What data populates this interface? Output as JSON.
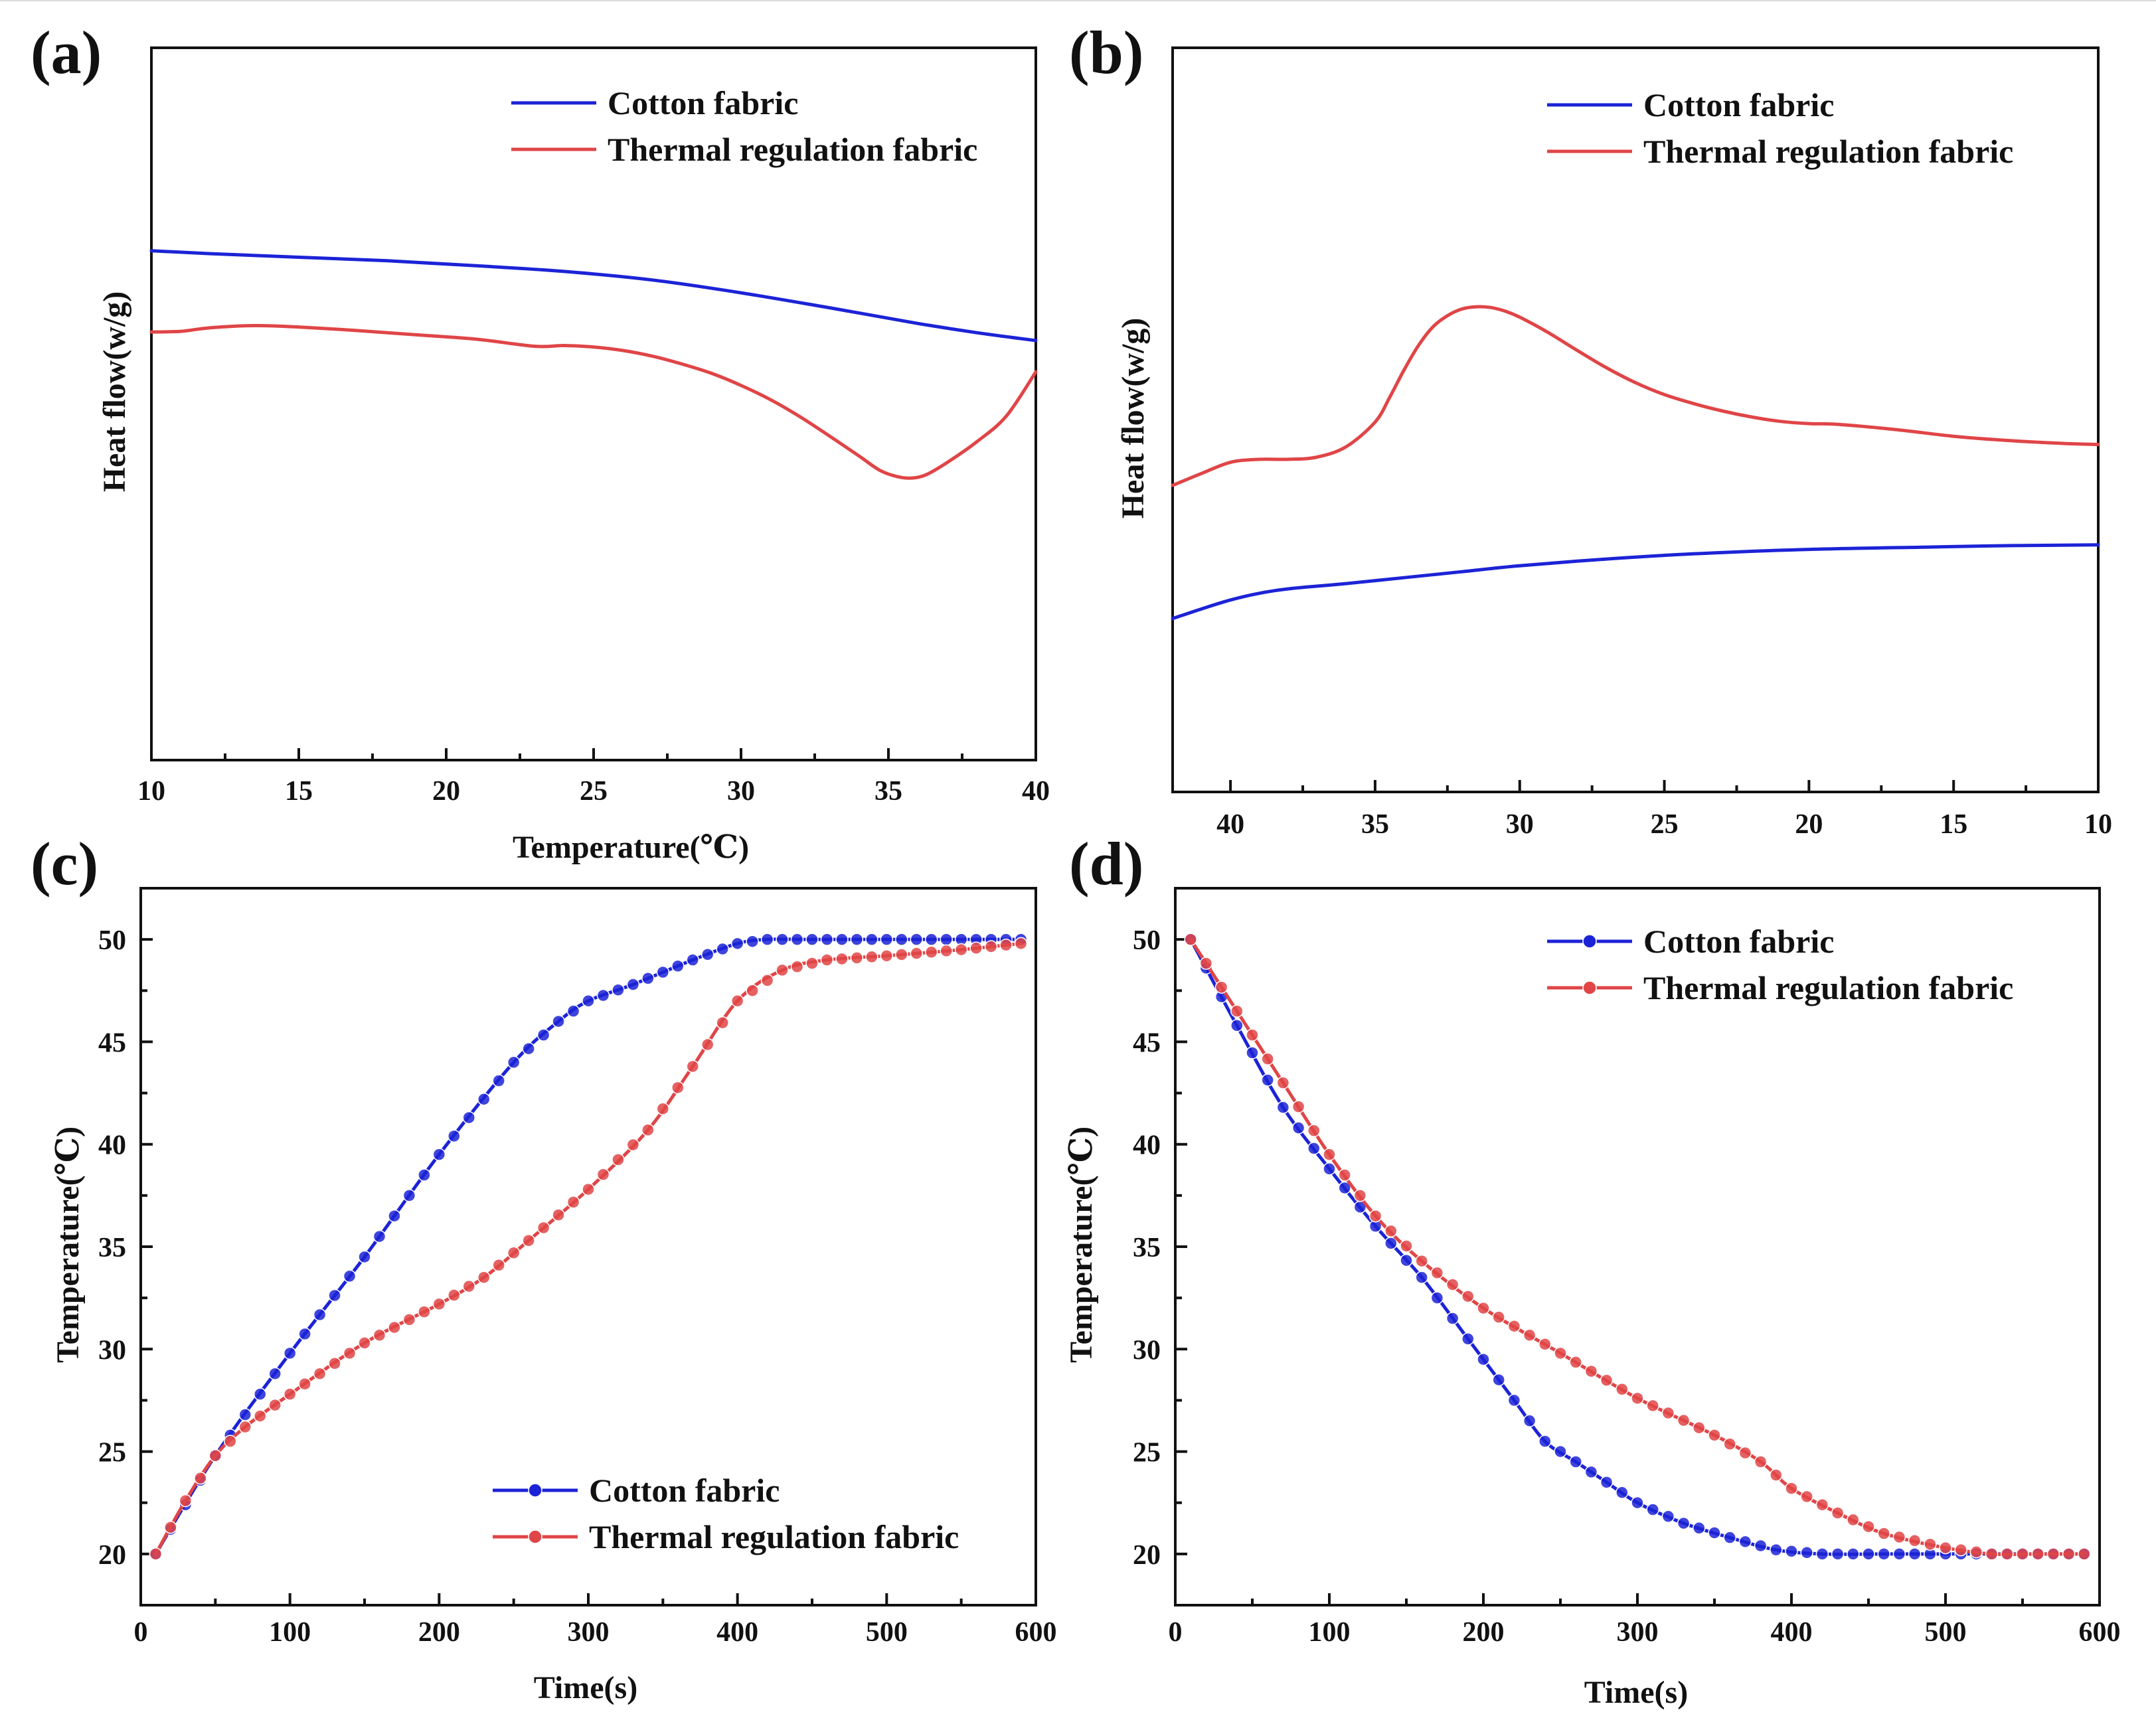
{
  "figure": {
    "colors": {
      "cotton": "#1c23d6",
      "thermal": "#e04547",
      "axis": "#111111"
    }
  },
  "chart_data": [
    {
      "id": "a",
      "panel_label": "(a)",
      "type": "line",
      "xlabel": "Temperature(℃)",
      "ylabel": "Heat flow(w/g)",
      "xlim": [
        10,
        40
      ],
      "ylim": [
        0,
        100
      ],
      "x_reversed": false,
      "yticks_shown": false,
      "xticks": [
        10,
        15,
        20,
        25,
        30,
        35,
        40
      ],
      "legend": {
        "position": "top-right",
        "entries": [
          "Cotton fabric",
          "Thermal regulation fabric"
        ]
      },
      "series": [
        {
          "name": "Cotton fabric",
          "color": "#1c23d6",
          "markers": false,
          "x": [
            10,
            12,
            15,
            18,
            21,
            24,
            27,
            30,
            33,
            36,
            38,
            40
          ],
          "y": [
            71.5,
            71.1,
            70.6,
            70.1,
            69.4,
            68.6,
            67.4,
            65.6,
            63.5,
            61.3,
            60.0,
            58.9
          ]
        },
        {
          "name": "Thermal regulation fabric",
          "color": "#e04547",
          "markers": false,
          "x": [
            10,
            11,
            12,
            13.5,
            15,
            17,
            19,
            21,
            23,
            24,
            25,
            26,
            27,
            28,
            29,
            30,
            31,
            32,
            33,
            34,
            34.7,
            35.3,
            35.8,
            36.3,
            37,
            38,
            39,
            40
          ],
          "y": [
            60.1,
            60.2,
            60.7,
            61.0,
            60.8,
            60.3,
            59.7,
            59.1,
            58.1,
            58.2,
            58.0,
            57.5,
            56.7,
            55.6,
            54.3,
            52.6,
            50.6,
            48.2,
            45.5,
            42.7,
            40.7,
            39.8,
            39.6,
            40.1,
            41.8,
            44.7,
            48.3,
            54.5
          ]
        }
      ]
    },
    {
      "id": "b",
      "panel_label": "(b)",
      "type": "line",
      "xlabel": "",
      "ylabel": "Heat flow(w/g)",
      "xlim": [
        42,
        10
      ],
      "ylim": [
        0,
        100
      ],
      "x_reversed": true,
      "yticks_shown": false,
      "xticks": [
        40,
        35,
        30,
        25,
        20,
        15,
        10
      ],
      "legend": {
        "position": "top-right",
        "entries": [
          "Cotton fabric",
          "Thermal regulation fabric"
        ]
      },
      "series": [
        {
          "name": "Cotton fabric",
          "color": "#1c23d6",
          "markers": false,
          "x": [
            42,
            41,
            40,
            39,
            38,
            36,
            34,
            32,
            30,
            27,
            24,
            20,
            16,
            13,
            10
          ],
          "y": [
            23.3,
            24.6,
            25.8,
            26.7,
            27.3,
            28.0,
            28.8,
            29.6,
            30.4,
            31.3,
            32.0,
            32.6,
            32.9,
            33.1,
            33.2
          ]
        },
        {
          "name": "Thermal regulation fabric",
          "color": "#e04547",
          "markers": false,
          "x": [
            42,
            41,
            40,
            39,
            38,
            37,
            36,
            35,
            34.5,
            34,
            33.5,
            33,
            32.5,
            32,
            31.5,
            31,
            30.5,
            30,
            29,
            28,
            27,
            26,
            25,
            24,
            23,
            22,
            21,
            20,
            19,
            17,
            15,
            13,
            11,
            10
          ],
          "y": [
            41.2,
            42.8,
            44.3,
            44.7,
            44.7,
            45.0,
            46.4,
            49.7,
            53.0,
            56.7,
            60.0,
            62.5,
            64.0,
            64.9,
            65.2,
            65.1,
            64.6,
            63.8,
            61.7,
            59.3,
            57.0,
            55.0,
            53.4,
            52.2,
            51.2,
            50.4,
            49.8,
            49.5,
            49.4,
            48.7,
            47.8,
            47.2,
            46.8,
            46.7
          ]
        }
      ]
    },
    {
      "id": "c",
      "panel_label": "(c)",
      "type": "line",
      "xlabel": "Time(s)",
      "ylabel": "Temperature(℃)",
      "xlim": [
        0,
        600
      ],
      "ylim": [
        17.5,
        52.5
      ],
      "x_reversed": false,
      "yticks_shown": true,
      "xticks": [
        0,
        100,
        200,
        300,
        400,
        500,
        600
      ],
      "yticks": [
        20,
        25,
        30,
        35,
        40,
        45,
        50
      ],
      "legend": {
        "position": "bottom-right",
        "entries": [
          "Cotton fabric",
          "Thermal regulation fabric"
        ]
      },
      "series": [
        {
          "name": "Cotton fabric",
          "color": "#1c23d6",
          "markers": true,
          "x": [
            10,
            50,
            100,
            150,
            200,
            250,
            280,
            300,
            330,
            370,
            400,
            420,
            450,
            500,
            550,
            590
          ],
          "y": [
            20.0,
            24.8,
            29.8,
            34.5,
            39.5,
            44.0,
            46.0,
            47.0,
            47.8,
            49.0,
            49.8,
            50.0,
            50.0,
            50.0,
            50.0,
            50.0
          ]
        },
        {
          "name": "Thermal regulation fabric",
          "color": "#e04547",
          "markers": true,
          "x": [
            10,
            30,
            50,
            70,
            100,
            150,
            200,
            230,
            260,
            300,
            340,
            370,
            400,
            430,
            460,
            500,
            550,
            590
          ],
          "y": [
            20.0,
            22.6,
            24.8,
            26.2,
            27.8,
            30.3,
            32.2,
            33.5,
            35.3,
            37.8,
            40.7,
            43.8,
            47.0,
            48.5,
            49.0,
            49.2,
            49.5,
            49.8
          ]
        }
      ]
    },
    {
      "id": "d",
      "panel_label": "(d)",
      "type": "line",
      "xlabel": "Time(s)",
      "ylabel": "Temperature(℃)",
      "xlim": [
        0,
        600
      ],
      "ylim": [
        17.5,
        52.5
      ],
      "x_reversed": false,
      "yticks_shown": true,
      "xticks": [
        0,
        100,
        200,
        300,
        400,
        500,
        600
      ],
      "yticks": [
        20,
        25,
        30,
        35,
        40,
        45,
        50
      ],
      "legend": {
        "position": "top-right",
        "entries": [
          "Cotton fabric",
          "Thermal regulation fabric"
        ]
      },
      "series": [
        {
          "name": "Cotton fabric",
          "color": "#1c23d6",
          "markers": true,
          "x": [
            10,
            40,
            70,
            100,
            130,
            160,
            190,
            220,
            240,
            260,
            280,
            300,
            330,
            360,
            390,
            420,
            460,
            500,
            550,
            590
          ],
          "y": [
            50.0,
            45.8,
            41.8,
            38.8,
            36.0,
            33.5,
            30.5,
            27.5,
            25.5,
            24.5,
            23.5,
            22.5,
            21.5,
            20.8,
            20.2,
            20.0,
            20.0,
            20.0,
            20.0,
            20.0
          ]
        },
        {
          "name": "Thermal regulation fabric",
          "color": "#e04547",
          "markers": true,
          "x": [
            10,
            40,
            70,
            100,
            130,
            160,
            200,
            250,
            300,
            350,
            380,
            400,
            430,
            460,
            500,
            530,
            560,
            590
          ],
          "y": [
            50.0,
            46.5,
            43.0,
            39.5,
            36.5,
            34.3,
            32.0,
            29.8,
            27.6,
            25.8,
            24.5,
            23.2,
            22.0,
            21.0,
            20.3,
            20.0,
            20.0,
            20.0
          ]
        }
      ]
    }
  ]
}
